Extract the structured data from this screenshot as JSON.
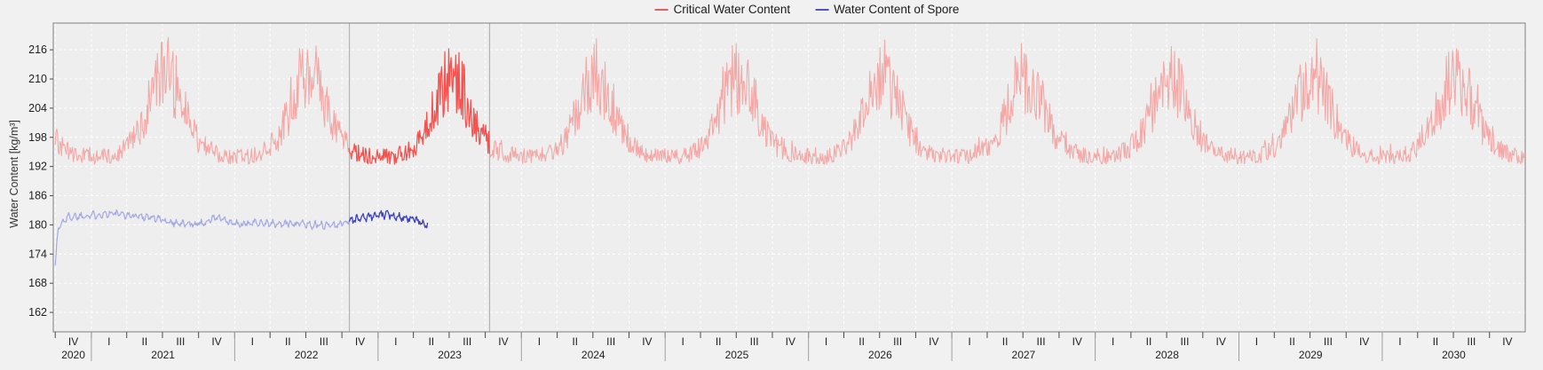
{
  "legend": {
    "items": [
      {
        "label": "Critical Water Content",
        "color": "#e2615e"
      },
      {
        "label": "Water Content of Spore",
        "color": "#5154c4"
      }
    ]
  },
  "y_axis": {
    "title": "Water Content [kg/m³]",
    "ticks": [
      216,
      210,
      204,
      198,
      192,
      186,
      180,
      174,
      168,
      162
    ]
  },
  "x_axis": {
    "quarter_labels": [
      "IV",
      "I",
      "II",
      "III",
      "IV",
      "I",
      "II",
      "III",
      "IV",
      "I",
      "II",
      "III",
      "IV",
      "I",
      "II",
      "III",
      "IV",
      "I",
      "II",
      "III",
      "IV",
      "I",
      "II",
      "III",
      "IV",
      "I",
      "II",
      "III",
      "IV",
      "I",
      "II",
      "III",
      "IV",
      "I",
      "II",
      "III",
      "IV",
      "I",
      "II",
      "III",
      "IV"
    ],
    "year_labels": [
      "2020",
      "2021",
      "2022",
      "2023",
      "2024",
      "2025",
      "2026",
      "2027",
      "2028",
      "2029",
      "2030"
    ]
  },
  "chart_data": {
    "type": "line",
    "title": "",
    "ylabel": "Water Content [kg/m³]",
    "xlabel": "",
    "x_domain": {
      "start": "2020-09-26",
      "end": "2030-12-31"
    },
    "x_tick_unit": "quarter",
    "y_ticks": [
      162,
      168,
      174,
      180,
      186,
      192,
      198,
      204,
      210,
      216
    ],
    "ylim": [
      158,
      221.5
    ],
    "grid": {
      "show": true,
      "color": "#ffffff",
      "dash": "3 3",
      "vertical_every": "quarter",
      "horizontal_every": 6
    },
    "highlight_window": {
      "start": "2022-10-20",
      "end": "2023-10-12",
      "line_color": "#b3b3b3"
    },
    "noise_seed": 1337,
    "series": [
      {
        "name": "Critical Water Content",
        "color": "#f4a8a6",
        "highlight_color": "#f8504c",
        "start": "2020-10-01",
        "end": "2030-12-29",
        "pattern": "seasonal-noisy",
        "monthly_means": [
          194.0,
          194.0,
          195.0,
          197.0,
          202.0,
          209.0,
          210.5,
          205.0,
          199.0,
          196.0,
          194.5,
          194.0
        ],
        "noise_base": 1.6,
        "noise_seasonal_gain": 0.38,
        "spike_threshold": 0.88,
        "spike_gain": 16,
        "min_value": 192.3,
        "max_value": 218.5
      },
      {
        "name": "Water Content of Spore",
        "color": "#a4a8e4",
        "highlight_color": "#3c40c0",
        "start": "2020-10-01",
        "end": "2023-05-08",
        "pattern": "anchored-noisy",
        "anchors": [
          [
            "2020-10-01",
            172.0
          ],
          [
            "2020-10-09",
            179.5
          ],
          [
            "2020-11-01",
            181.6
          ],
          [
            "2021-01-01",
            182.0
          ],
          [
            "2021-02-20",
            182.4
          ],
          [
            "2021-04-01",
            182.0
          ],
          [
            "2021-06-01",
            181.6
          ],
          [
            "2021-07-20",
            180.6
          ],
          [
            "2021-09-01",
            180.1
          ],
          [
            "2021-10-15",
            180.4
          ],
          [
            "2021-11-15",
            181.6
          ],
          [
            "2021-12-20",
            180.4
          ],
          [
            "2022-01-20",
            180.0
          ],
          [
            "2022-03-01",
            180.6
          ],
          [
            "2022-04-15",
            180.1
          ],
          [
            "2022-06-01",
            180.4
          ],
          [
            "2022-08-01",
            179.9
          ],
          [
            "2022-09-20",
            180.1
          ],
          [
            "2022-10-20",
            180.9
          ],
          [
            "2022-12-01",
            181.6
          ],
          [
            "2023-01-20",
            182.1
          ],
          [
            "2023-02-20",
            181.8
          ],
          [
            "2023-04-01",
            181.1
          ],
          [
            "2023-05-08",
            180.0
          ]
        ],
        "noise_amp": 0.55,
        "wave_amp": 0.45,
        "wave_period_days": 26
      }
    ],
    "colors": {
      "figure_background": "#f1f1f1",
      "plot_background": "#eeeeee",
      "spine": "#808080",
      "tick": "#4a4a4a",
      "year_separator": "#a0a0a0",
      "text": "#1f1f1f"
    }
  }
}
